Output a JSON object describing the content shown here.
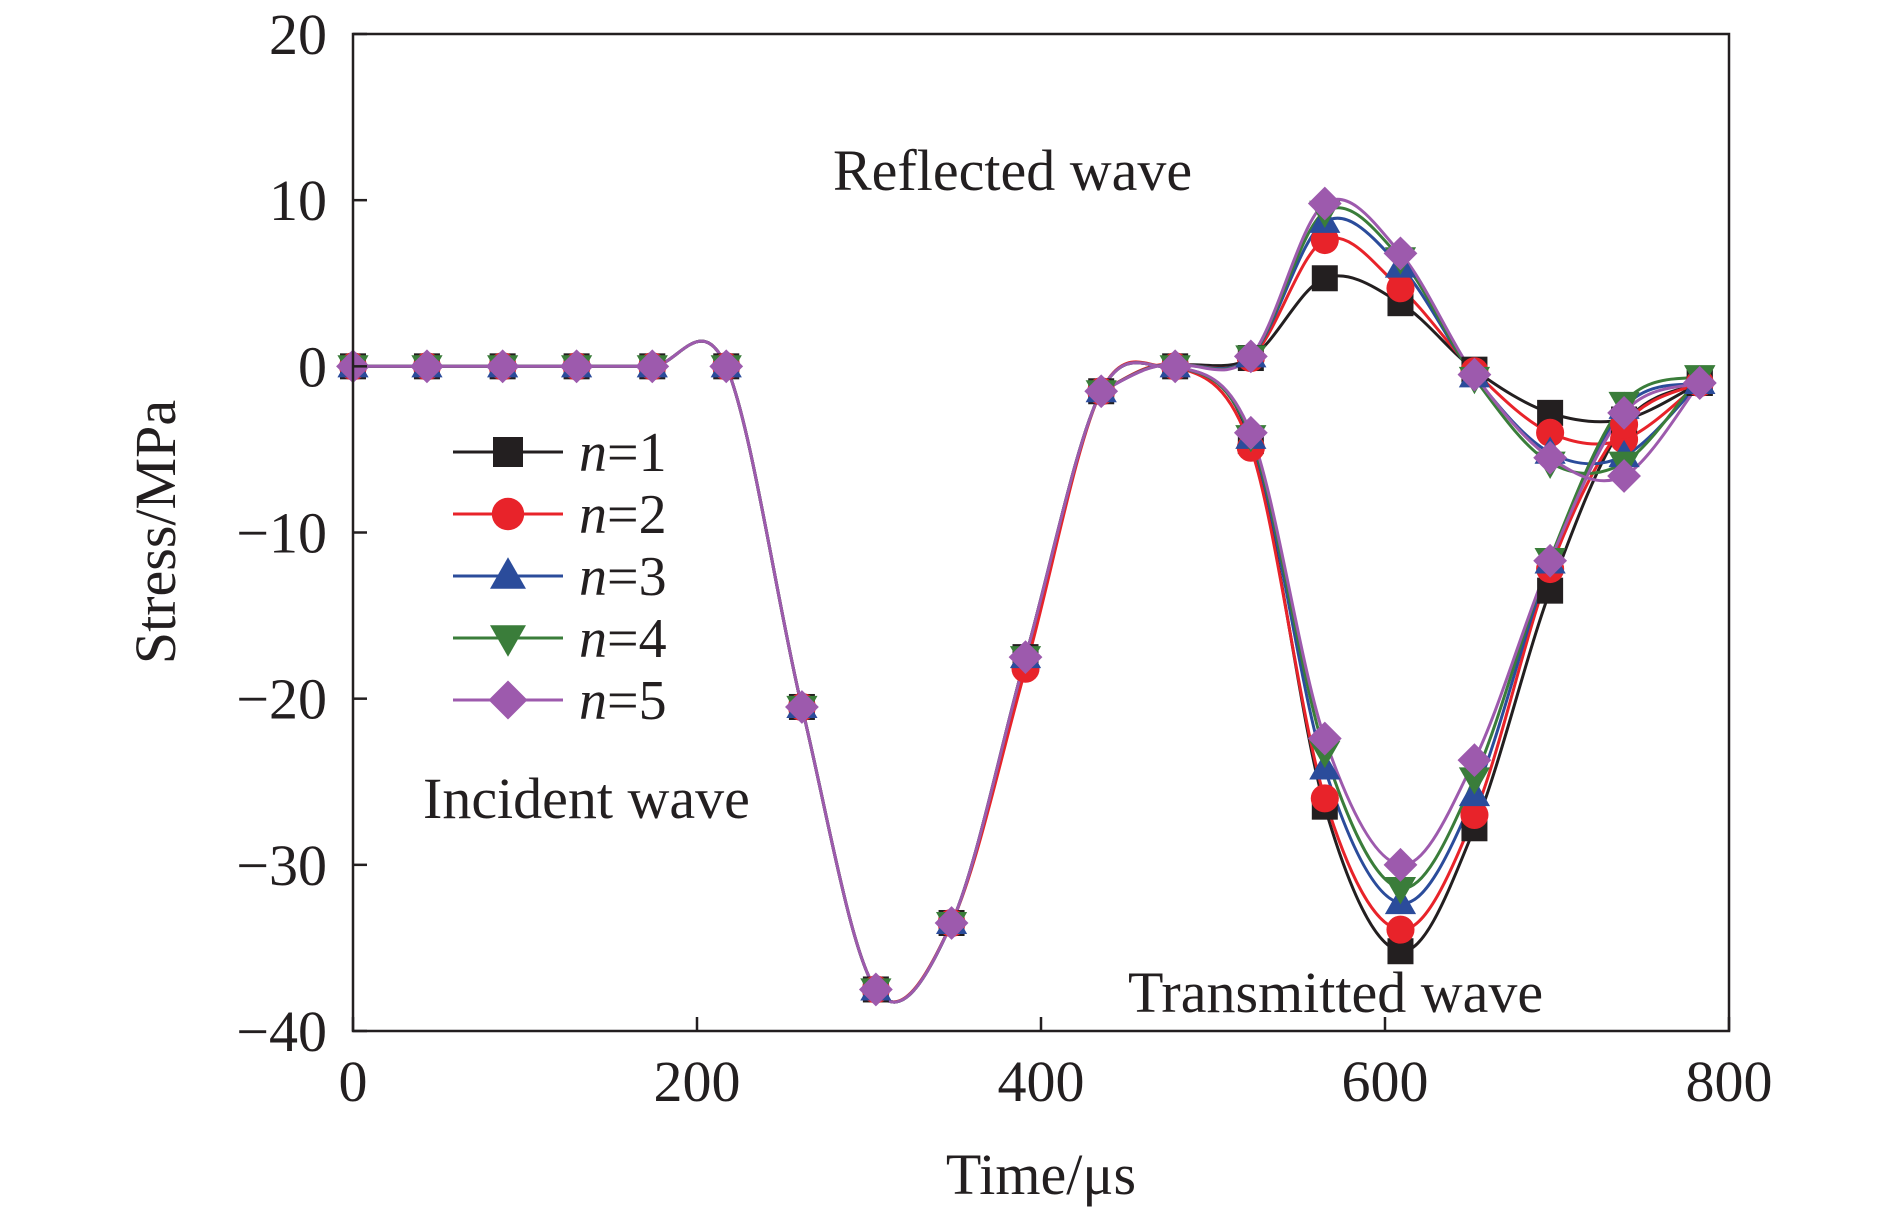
{
  "chart_data": {
    "type": "line",
    "xlabel": "Time/μs",
    "ylabel": "Stress/MPa",
    "xlim": [
      0,
      800
    ],
    "ylim": [
      -40,
      20
    ],
    "xticks": [
      0,
      200,
      400,
      600,
      800
    ],
    "yticks": [
      20,
      10,
      0,
      -10,
      -20,
      -30,
      -40
    ],
    "grid": false,
    "legend_placement": "left",
    "annotations": {
      "reflected": "Reflected wave",
      "incident": "Incident wave",
      "transmitted": "Transmitted wave"
    },
    "series": [
      {
        "name": "n=1",
        "legend_prefix": "n",
        "legend_suffix": "=1",
        "color": "#231f20",
        "marker": "square",
        "x": [
          0,
          43,
          87,
          130,
          174,
          217,
          261,
          304,
          348,
          391,
          435,
          478,
          522,
          565,
          609,
          652,
          696,
          739,
          783
        ],
        "y": [
          0,
          0,
          0,
          0,
          0,
          0,
          -20.5,
          -37.5,
          -33.5,
          -17.5,
          -1.5,
          0,
          0.5,
          5.3,
          3.8,
          -0.2,
          -2.8,
          -3.2,
          -1
        ],
        "incident_y": [
          0,
          0,
          0,
          0,
          0,
          0,
          -20.5,
          -37.5,
          -33.5,
          -17.5,
          -1.5,
          0
        ],
        "transmitted_y": [
          0,
          -4.5,
          -26.5,
          -35.2,
          -27.8,
          -13.5,
          -3.5,
          -1
        ]
      },
      {
        "name": "n=2",
        "legend_prefix": "n",
        "legend_suffix": "=2",
        "color": "#e8232a",
        "marker": "circle",
        "x": [
          0,
          43,
          87,
          130,
          174,
          217,
          261,
          304,
          348,
          391,
          435,
          478,
          522,
          565,
          609,
          652,
          696,
          739,
          783
        ],
        "y": [
          0,
          0,
          0,
          0,
          0,
          0,
          -20.5,
          -37.5,
          -33.5,
          -18.2,
          -1.5,
          0,
          0.5,
          7.6,
          4.7,
          -0.3,
          -4,
          -4.4,
          -1
        ],
        "incident_y": [
          0,
          0,
          0,
          0,
          0,
          0,
          -20.5,
          -37.5,
          -33.5,
          -18.2,
          -1.5,
          0
        ],
        "transmitted_y": [
          0,
          -4.9,
          -26,
          -33.9,
          -27,
          -12.2,
          -3.5,
          -1
        ]
      },
      {
        "name": "n=3",
        "legend_prefix": "n",
        "legend_suffix": "=3",
        "color": "#2b4c9b",
        "marker": "triangle-up",
        "x": [
          0,
          43,
          87,
          130,
          174,
          217,
          261,
          304,
          348,
          391,
          435,
          478,
          522,
          565,
          609,
          652,
          696,
          739,
          783
        ],
        "y": [
          0,
          0,
          0,
          0,
          0,
          0,
          -20.5,
          -37.5,
          -33.5,
          -17.5,
          -1.5,
          0,
          0.6,
          8.7,
          6,
          -0.6,
          -5.2,
          -5.4,
          -1
        ],
        "incident_y": [
          0,
          0,
          0,
          0,
          0,
          0,
          -20.5,
          -37.5,
          -33.5,
          -17.5,
          -1.5,
          0
        ],
        "transmitted_y": [
          0,
          -4.3,
          -24.2,
          -32.3,
          -25.8,
          -11.8,
          -2.5,
          -1
        ]
      },
      {
        "name": "n=4",
        "legend_prefix": "n",
        "legend_suffix": "=4",
        "color": "#3a7d3a",
        "marker": "triangle-down",
        "x": [
          0,
          43,
          87,
          130,
          174,
          217,
          261,
          304,
          348,
          391,
          435,
          478,
          522,
          565,
          609,
          652,
          696,
          739,
          783
        ],
        "y": [
          0,
          0,
          0,
          0,
          0,
          0,
          -20.5,
          -37.5,
          -33.5,
          -17.5,
          -1.5,
          0,
          0.6,
          9.3,
          6.5,
          -0.7,
          -5.8,
          -5.8,
          -0.6
        ],
        "incident_y": [
          0,
          0,
          0,
          0,
          0,
          0,
          -20.5,
          -37.5,
          -33.5,
          -17.5,
          -1.5,
          0
        ],
        "transmitted_y": [
          0,
          -4.2,
          -23.2,
          -31.4,
          -24.8,
          -11.6,
          -2.2,
          -0.6
        ]
      },
      {
        "name": "n=5",
        "legend_prefix": "n",
        "legend_suffix": "=5",
        "color": "#9d5aad",
        "marker": "diamond",
        "x": [
          0,
          43,
          87,
          130,
          174,
          217,
          261,
          304,
          348,
          391,
          435,
          478,
          522,
          565,
          609,
          652,
          696,
          739,
          783
        ],
        "y": [
          0,
          0,
          0,
          0,
          0,
          0,
          -20.5,
          -37.5,
          -33.5,
          -17.5,
          -1.5,
          0,
          0.6,
          9.8,
          6.8,
          -0.5,
          -5.5,
          -6.6,
          -1
        ],
        "incident_y": [
          0,
          0,
          0,
          0,
          0,
          0,
          -20.5,
          -37.5,
          -33.5,
          -17.5,
          -1.5,
          0
        ],
        "transmitted_y": [
          0,
          -4,
          -22.4,
          -30,
          -23.7,
          -11.7,
          -2.8,
          -1
        ]
      }
    ]
  }
}
